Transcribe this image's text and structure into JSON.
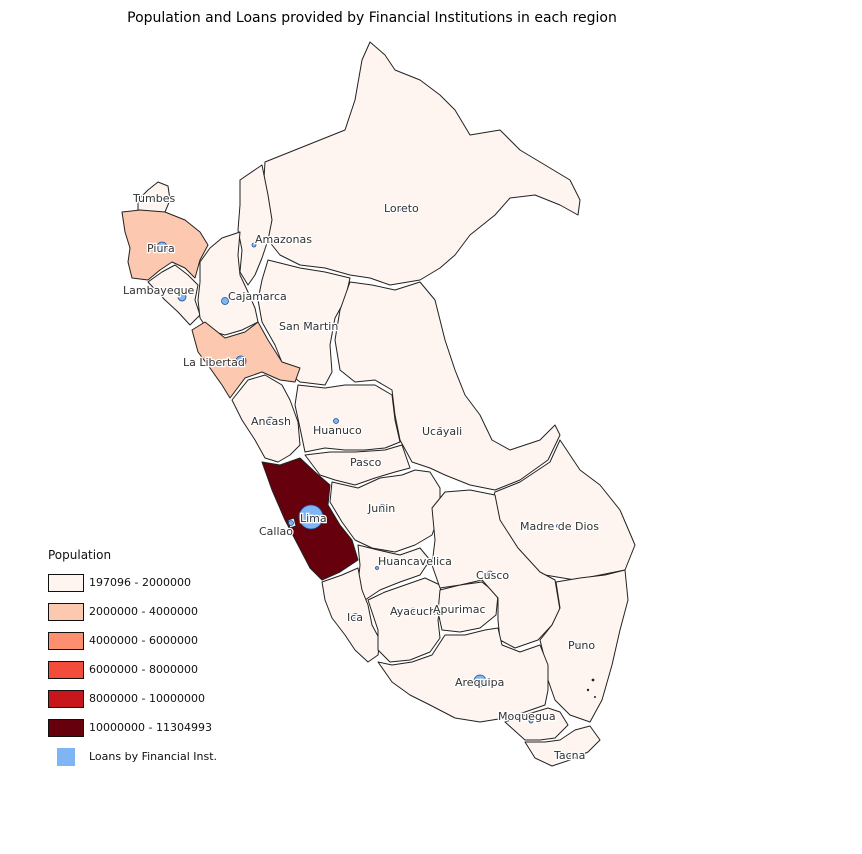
{
  "title": "Population and Loans provided by Financial Institutions in each region",
  "legend": {
    "title": "Population",
    "classes": [
      {
        "label": "197096 - 2000000",
        "color": "#fff5f0"
      },
      {
        "label": "2000000 - 4000000",
        "color": "#fcc8b0"
      },
      {
        "label": "4000000 - 6000000",
        "color": "#fb8f6f"
      },
      {
        "label": "6000000 - 8000000",
        "color": "#f24c3a"
      },
      {
        "label": "8000000 - 10000000",
        "color": "#c8161d"
      },
      {
        "label": "10000000 - 11304993",
        "color": "#67000d"
      }
    ],
    "bubble_label": "Loans by Financial Inst.",
    "bubble_color": "#7fb5f5"
  },
  "regions": [
    {
      "name": "Tumbes",
      "class": 0
    },
    {
      "name": "Piura",
      "class": 1
    },
    {
      "name": "Lambayeque",
      "class": 0
    },
    {
      "name": "Cajamarca",
      "class": 0
    },
    {
      "name": "Amazonas",
      "class": 0
    },
    {
      "name": "Loreto",
      "class": 0
    },
    {
      "name": "San Martin",
      "class": 0
    },
    {
      "name": "La Libertad",
      "class": 1
    },
    {
      "name": "Ancash",
      "class": 0
    },
    {
      "name": "Huanuco",
      "class": 0
    },
    {
      "name": "Ucayali",
      "class": 0
    },
    {
      "name": "Pasco",
      "class": 0
    },
    {
      "name": "Lima",
      "class": 5
    },
    {
      "name": "Callao",
      "class": 0
    },
    {
      "name": "Junin",
      "class": 0
    },
    {
      "name": "Madre de Dios",
      "class": 0
    },
    {
      "name": "Huancavelica",
      "class": 0
    },
    {
      "name": "Cusco",
      "class": 0
    },
    {
      "name": "Ica",
      "class": 0
    },
    {
      "name": "Ayacucho",
      "class": 0
    },
    {
      "name": "Apurimac",
      "class": 0
    },
    {
      "name": "Puno",
      "class": 0
    },
    {
      "name": "Arequipa",
      "class": 0
    },
    {
      "name": "Moquegua",
      "class": 0
    },
    {
      "name": "Tacna",
      "class": 0
    }
  ]
}
